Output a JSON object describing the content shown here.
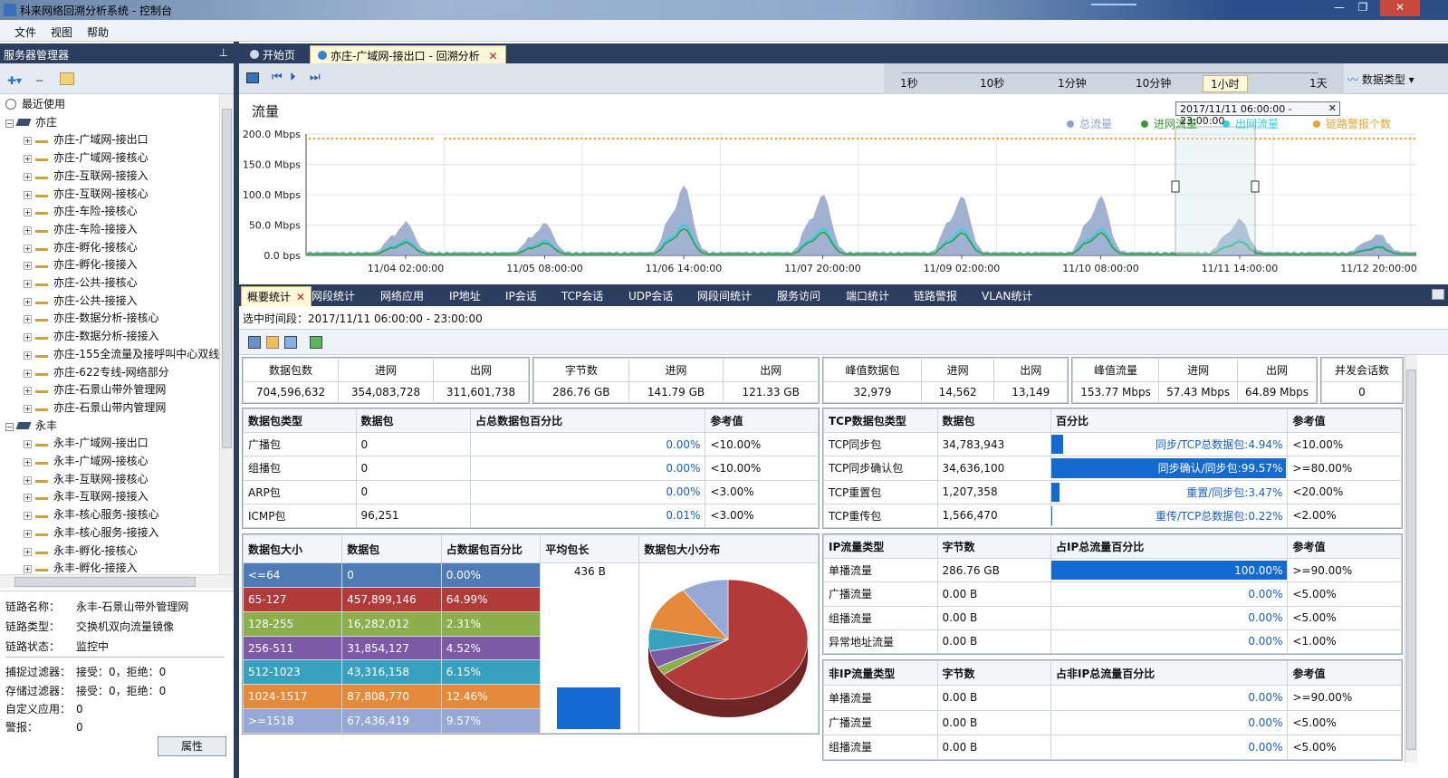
{
  "window": {
    "title": "科来网络回溯分析系统 - 控制台",
    "min": "—",
    "max": "❐",
    "close": "✕"
  },
  "menu": [
    "文件",
    "视图",
    "帮助"
  ],
  "left_panel": {
    "header": "服务器管理器",
    "pin": "⊥",
    "recent": "最近使用",
    "groups": [
      {
        "name": "亦庄",
        "items": [
          "亦庄-广域网-接出口",
          "亦庄-广域网-接核心",
          "亦庄-互联网-接接入",
          "亦庄-互联网-接核心",
          "亦庄-车险-接核心",
          "亦庄-车险-接接入",
          "亦庄-孵化-接核心",
          "亦庄-孵化-接接入",
          "亦庄-公共-接核心",
          "亦庄-公共-接接入",
          "亦庄-数据分析-接核心",
          "亦庄-数据分析-接接入",
          "亦庄-155全流量及接呼叫中心双线",
          "亦庄-622专线-网络部分",
          "亦庄-石景山带外管理网",
          "亦庄-石景山带内管理网"
        ]
      },
      {
        "name": "永丰",
        "items": [
          "永丰-广域网-接出口",
          "永丰-广域网-接核心",
          "永丰-互联网-接核心",
          "永丰-互联网-接接入",
          "永丰-核心服务-接核心",
          "永丰-核心服务-接接入",
          "永丰-孵化-接核心",
          "永丰-孵化-接接入"
        ]
      }
    ],
    "props": [
      {
        "k": "链路名称：",
        "v": "永丰-石景山带外管理网"
      },
      {
        "k": "链路类型：",
        "v": "交换机双向流量镜像"
      },
      {
        "k": "链路状态：",
        "v": "监控中"
      },
      {
        "k": "捕捉过滤器：",
        "v": "接受：0，拒绝：0"
      },
      {
        "k": "存储过滤器：",
        "v": "接受：0，拒绝：0"
      },
      {
        "k": "自定义应用：",
        "v": "0"
      },
      {
        "k": "警报：",
        "v": "0"
      }
    ],
    "props_button": "属性"
  },
  "doc_tabs": [
    {
      "label": "开始页",
      "active": false
    },
    {
      "label": "亦庄-广域网-接出口 - 回溯分析",
      "active": true,
      "close": "✕"
    }
  ],
  "time_scale": [
    "1秒",
    "10秒",
    "1分钟",
    "10分钟",
    "1小时",
    "1天"
  ],
  "time_scale_selected": "1小时",
  "data_type_button": "数据类型",
  "chart_data": {
    "type": "area",
    "title": "流量",
    "y_ticks": [
      "200.0 Mbps",
      "150.0 Mbps",
      "100.0 Mbps",
      "50.0 Mbps",
      "0.0 bps"
    ],
    "ylim": [
      0,
      200
    ],
    "x_ticks": [
      "11/04 02:00:00",
      "11/05 08:00:00",
      "11/06 14:00:00",
      "11/07 20:00:00",
      "11/09 02:00:00",
      "11/10 08:00:00",
      "11/11 14:00:00",
      "11/12 20:00:00"
    ],
    "legend": [
      "总流量",
      "进网流量",
      "出网流量",
      "链路警报个数"
    ],
    "colors": {
      "total": "#8fa3c9",
      "in": "#3a9a3a",
      "out": "#2fd0e0",
      "alarm": "#e8a43a"
    },
    "selection_label": "2017/11/11  06:00:00 - 23:00:00",
    "peaks": [
      {
        "day": 0,
        "total": 50
      },
      {
        "day": 1,
        "total": 48
      },
      {
        "day": 2,
        "total": 110
      },
      {
        "day": 3,
        "total": 95
      },
      {
        "day": 4,
        "total": 92
      },
      {
        "day": 5,
        "total": 92
      },
      {
        "day": 6,
        "total": 55
      },
      {
        "day": 7,
        "total": 30
      }
    ]
  },
  "stats_tabs": [
    "概要统计",
    "网段统计",
    "网络应用",
    "IP地址",
    "IP会话",
    "TCP会话",
    "UDP会话",
    "网段间统计",
    "服务访问",
    "端口统计",
    "链路警报",
    "VLAN统计"
  ],
  "selected_range": "选中时间段：2017/11/11   06:00:00 - 23:00:00",
  "summary": [
    {
      "h": [
        "数据包数",
        "进网",
        "出网"
      ],
      "v": [
        "704,596,632",
        "354,083,728",
        "311,601,738"
      ]
    },
    {
      "h": [
        "字节数",
        "进网",
        "出网"
      ],
      "v": [
        "286.76 GB",
        "141.79 GB",
        "121.33 GB"
      ]
    },
    {
      "h": [
        "峰值数据包",
        "进网",
        "出网"
      ],
      "v": [
        "32,979",
        "14,562",
        "13,149"
      ]
    },
    {
      "h": [
        "峰值流量",
        "进网",
        "出网"
      ],
      "v": [
        "153.77 Mbps",
        "57.43 Mbps",
        "64.89 Mbps"
      ]
    },
    {
      "h": [
        "并发会话数"
      ],
      "v": [
        "0"
      ]
    }
  ],
  "packet_types": {
    "headers": [
      "数据包类型",
      "数据包",
      "占总数据包百分比",
      "参考值"
    ],
    "rows": [
      {
        "type": "广播包",
        "count": "0",
        "pct": "0.00%",
        "ratio": 0,
        "ref": "<10.00%"
      },
      {
        "type": "组播包",
        "count": "0",
        "pct": "0.00%",
        "ratio": 0,
        "ref": "<10.00%"
      },
      {
        "type": "ARP包",
        "count": "0",
        "pct": "0.00%",
        "ratio": 0,
        "ref": "<3.00%"
      },
      {
        "type": "ICMP包",
        "count": "96,251",
        "pct": "0.01%",
        "ratio": 0.0001,
        "ref": "<3.00%"
      }
    ]
  },
  "tcp_types": {
    "headers": [
      "TCP数据包类型",
      "数据包",
      "百分比",
      "参考值"
    ],
    "rows": [
      {
        "type": "TCP同步包",
        "count": "34,783,943",
        "pct": "同步/TCP总数据包:4.94%",
        "ratio": 0.0494,
        "ref": "<10.00%"
      },
      {
        "type": "TCP同步确认包",
        "count": "34,636,100",
        "pct": "同步确认/同步包:99.57%",
        "ratio": 0.9957,
        "ref": ">=80.00%"
      },
      {
        "type": "TCP重置包",
        "count": "1,207,358",
        "pct": "重置/同步包:3.47%",
        "ratio": 0.0347,
        "ref": "<20.00%"
      },
      {
        "type": "TCP重传包",
        "count": "1,566,470",
        "pct": "重传/TCP总数据包:0.22%",
        "ratio": 0.0022,
        "ref": "<2.00%"
      }
    ]
  },
  "size_dist": {
    "headers": [
      "数据包大小",
      "数据包",
      "占数据包百分比",
      "平均包长",
      "数据包大小分布"
    ],
    "avg": "436 B",
    "rows": [
      {
        "size": "<=64",
        "count": "0",
        "pct": "0.00%",
        "color": "#4f7bb6",
        "value": 0
      },
      {
        "size": "65-127",
        "count": "457,899,146",
        "pct": "64.99%",
        "color": "#b23b3a",
        "value": 64.99
      },
      {
        "size": "128-255",
        "count": "16,282,012",
        "pct": "2.31%",
        "color": "#8cae4c",
        "value": 2.31
      },
      {
        "size": "256-511",
        "count": "31,854,127",
        "pct": "4.52%",
        "color": "#7c5aa6",
        "value": 4.52
      },
      {
        "size": "512-1023",
        "count": "43,316,158",
        "pct": "6.15%",
        "color": "#38a1c0",
        "value": 6.15
      },
      {
        "size": "1024-1517",
        "count": "87,808,770",
        "pct": "12.46%",
        "color": "#e48a3a",
        "value": 12.46
      },
      {
        "size": ">=1518",
        "count": "67,436,419",
        "pct": "9.57%",
        "color": "#98a8d6",
        "value": 9.57
      }
    ]
  },
  "ip_traffic": {
    "headers": [
      "IP流量类型",
      "字节数",
      "占IP总流量百分比",
      "参考值"
    ],
    "rows": [
      {
        "type": "单播流量",
        "bytes": "286.76 GB",
        "pct": "100.00%",
        "ratio": 1,
        "ref": ">=90.00%"
      },
      {
        "type": "广播流量",
        "bytes": "0.00 B",
        "pct": "0.00%",
        "ratio": 0,
        "ref": "<5.00%"
      },
      {
        "type": "组播流量",
        "bytes": "0.00 B",
        "pct": "0.00%",
        "ratio": 0,
        "ref": "<5.00%"
      },
      {
        "type": "异常地址流量",
        "bytes": "0.00 B",
        "pct": "0.00%",
        "ratio": 0,
        "ref": "<1.00%"
      }
    ]
  },
  "nonip_traffic": {
    "headers": [
      "非IP流量类型",
      "字节数",
      "占非IP总流量百分比",
      "参考值"
    ],
    "rows": [
      {
        "type": "单播流量",
        "bytes": "0.00 B",
        "pct": "0.00%",
        "ratio": 0,
        "ref": ">=90.00%"
      },
      {
        "type": "广播流量",
        "bytes": "0.00 B",
        "pct": "0.00%",
        "ratio": 0,
        "ref": "<5.00%"
      },
      {
        "type": "组播流量",
        "bytes": "0.00 B",
        "pct": "0.00%",
        "ratio": 0,
        "ref": "<5.00%"
      }
    ]
  }
}
